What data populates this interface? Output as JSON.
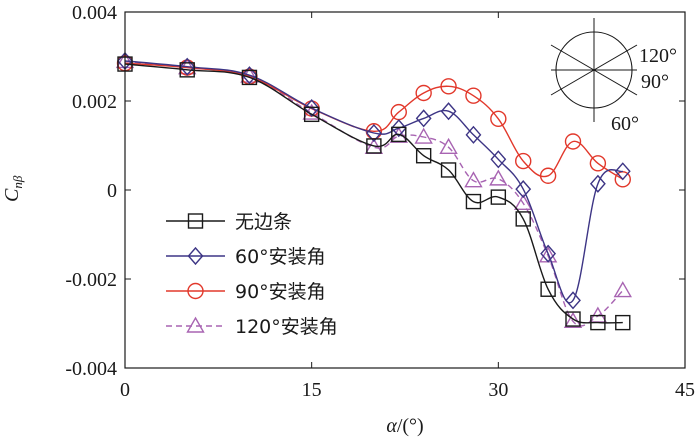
{
  "chart_data": {
    "type": "line",
    "xlabel_main": "α",
    "xlabel_unit": "/(°)",
    "ylabel_main": "C",
    "ylabel_sub": "nβ",
    "xlim": [
      0,
      45
    ],
    "ylim": [
      -0.004,
      0.004
    ],
    "xticks": [
      0,
      15,
      30,
      45
    ],
    "xtick_labels": [
      "0",
      "15",
      "30",
      "45"
    ],
    "yticks": [
      -0.004,
      -0.002,
      0,
      0.002,
      0.004
    ],
    "ytick_labels": [
      "-0.004",
      "-0.002",
      "0",
      "0.002",
      "0.004"
    ],
    "series": [
      {
        "name": "无边条",
        "color": "#1a1a1a",
        "marker": "square",
        "dash": "solid",
        "x": [
          0,
          5,
          10,
          15,
          20,
          22,
          24,
          26,
          28,
          30,
          32,
          34,
          36,
          38,
          40
        ],
        "y": [
          0.00283,
          0.0027,
          0.00253,
          0.0017,
          0.00099,
          0.00125,
          0.00077,
          0.00045,
          -0.00026,
          -0.00016,
          -0.00065,
          -0.00223,
          -0.0029,
          -0.00298,
          -0.00298
        ]
      },
      {
        "name": "60°安装角",
        "color": "#3d3585",
        "marker": "diamond",
        "dash": "solid",
        "x": [
          0,
          5,
          10,
          15,
          20,
          22,
          24,
          26,
          28,
          30,
          32,
          34,
          36,
          38,
          40
        ],
        "y": [
          0.0029,
          0.00277,
          0.00258,
          0.00184,
          0.00128,
          0.00139,
          0.00161,
          0.00177,
          0.00124,
          0.00069,
          2e-05,
          -0.00143,
          -0.00248,
          0.00014,
          0.00042
        ]
      },
      {
        "name": "90°安装角",
        "color": "#e2382b",
        "marker": "circle",
        "dash": "solid",
        "x": [
          0,
          5,
          10,
          15,
          20,
          22,
          24,
          26,
          28,
          30,
          32,
          34,
          36,
          38,
          40
        ],
        "y": [
          0.00285,
          0.00275,
          0.00255,
          0.00183,
          0.00132,
          0.00175,
          0.00218,
          0.00233,
          0.00212,
          0.0016,
          0.00065,
          0.00032,
          0.00109,
          0.0006,
          0.00024
        ]
      },
      {
        "name": "120°安装角",
        "color": "#a864b2",
        "marker": "triangle",
        "dash": "dashed",
        "x": [
          0,
          5,
          10,
          15,
          20,
          22,
          24,
          26,
          28,
          30,
          32,
          34,
          36,
          38,
          40
        ],
        "y": [
          0.00289,
          0.00275,
          0.00256,
          0.00173,
          0.00096,
          0.00121,
          0.00119,
          0.00096,
          0.00021,
          0.00025,
          -0.0003,
          -0.00148,
          -0.00295,
          -0.00283,
          -0.00226
        ]
      }
    ],
    "legend_position": "lower-left",
    "inset_labels": [
      "120°",
      "90°",
      "60°"
    ]
  }
}
